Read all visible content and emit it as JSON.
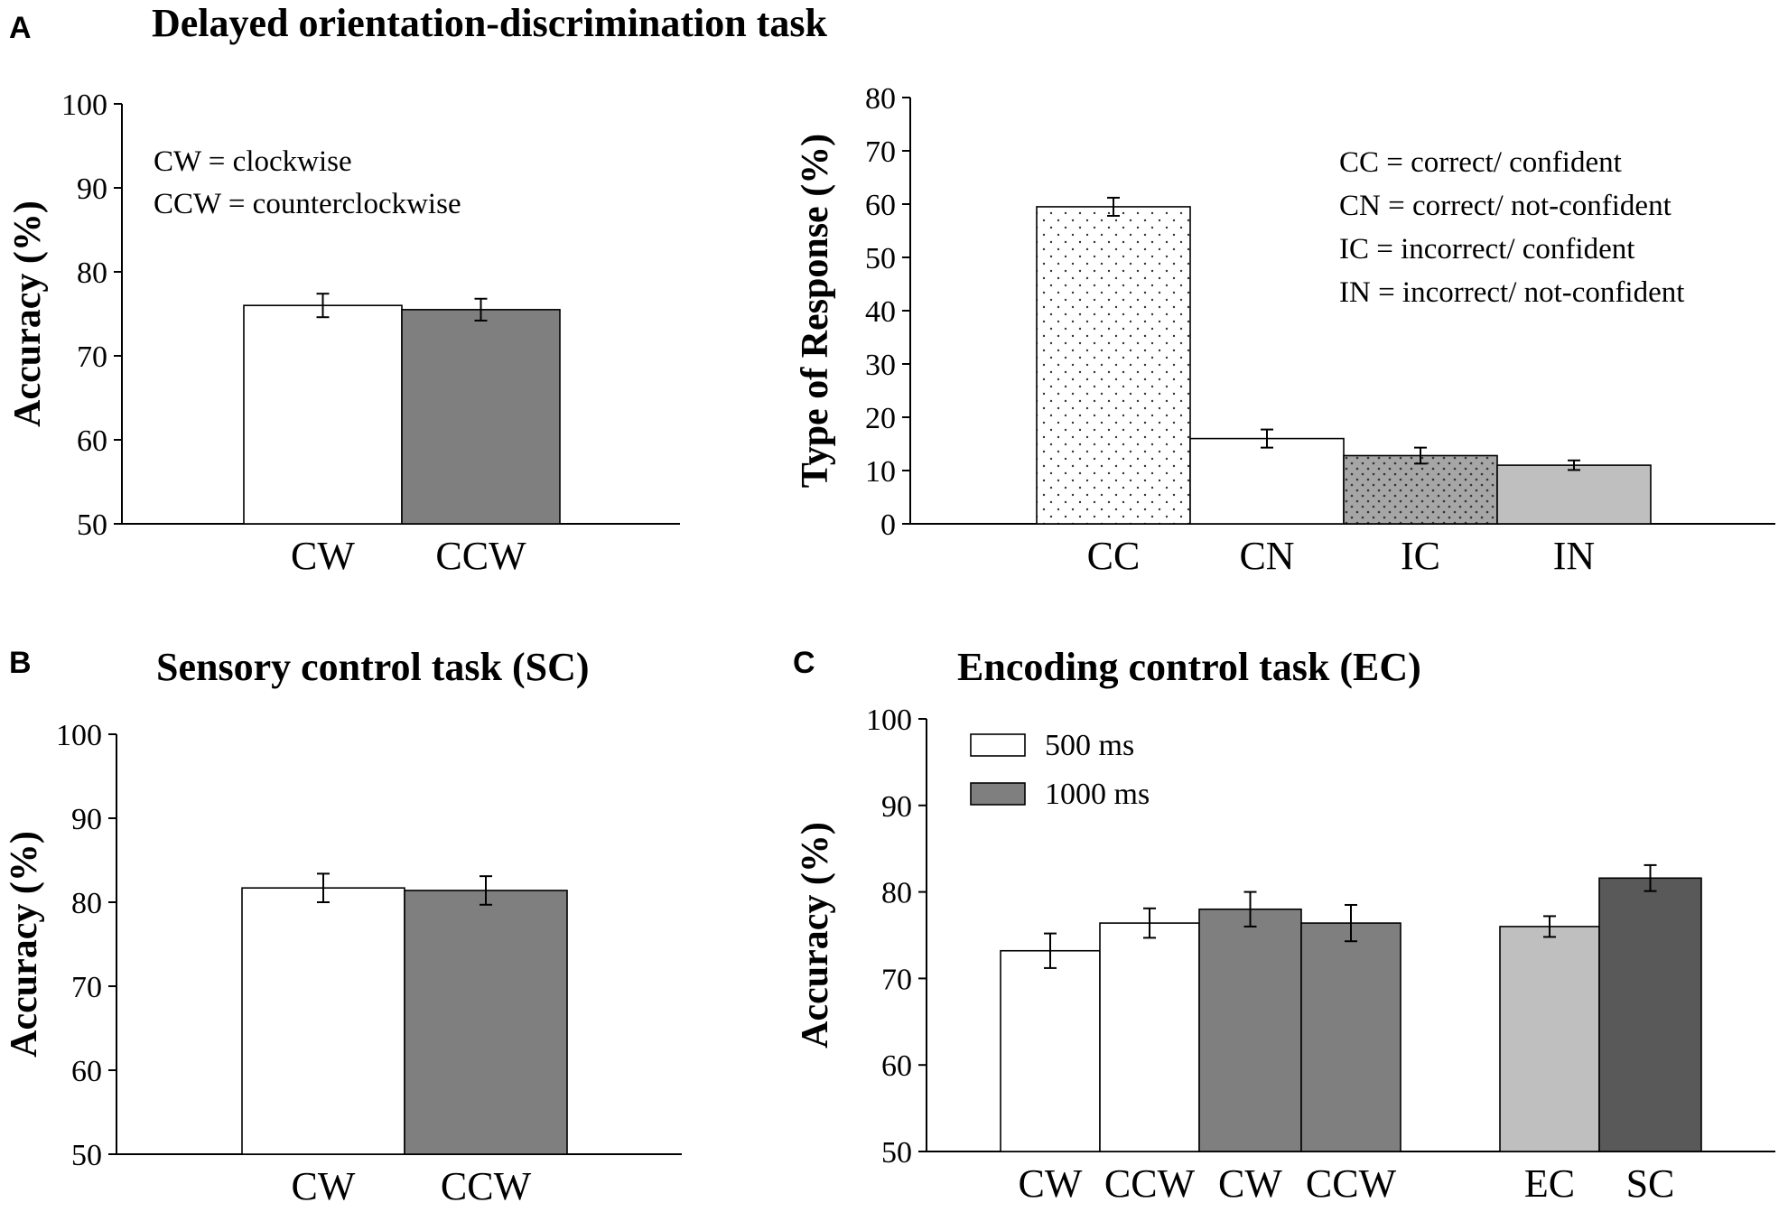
{
  "panels": {
    "A": {
      "letter": "A",
      "title": "Delayed orientation-discrimination task"
    },
    "B": {
      "letter": "B",
      "title": "Sensory control task (SC)"
    },
    "C": {
      "letter": "C",
      "title": "Encoding control task (EC)"
    }
  },
  "notes": {
    "a1": [
      "CW = clockwise",
      "CCW = counterclockwise"
    ],
    "a2": [
      "CC = correct/ confident",
      "CN = correct/ not-confident",
      "IC = incorrect/ confident",
      "IN = incorrect/ not-confident"
    ]
  },
  "colors": {
    "white": "#ffffff",
    "dark_gray": "#7f7f7f",
    "light_gray": "#bfbfbf",
    "darkest_gray": "#595959",
    "dot_gray": "#a6a6a6",
    "dots": "#333333"
  },
  "chart_data": [
    {
      "id": "a1",
      "type": "bar",
      "ylabel": "Accuracy (%)",
      "ylim": [
        50,
        100
      ],
      "yticks": [
        50,
        60,
        70,
        80,
        90,
        100
      ],
      "categories": [
        "CW",
        "CCW"
      ],
      "values": [
        76,
        75.5
      ],
      "errors": [
        1.4,
        1.3
      ],
      "fills": [
        "white",
        "dark_gray"
      ]
    },
    {
      "id": "a2",
      "type": "bar",
      "ylabel": "Type of Response (%)",
      "ylim": [
        0,
        80
      ],
      "yticks": [
        0,
        10,
        20,
        30,
        40,
        50,
        60,
        70,
        80
      ],
      "categories": [
        "CC",
        "CN",
        "IC",
        "IN"
      ],
      "values": [
        59.5,
        16,
        12.8,
        11
      ],
      "errors": [
        1.7,
        1.7,
        1.5,
        0.9
      ],
      "fills": [
        "dots_white",
        "white",
        "dots_gray",
        "light_gray"
      ]
    },
    {
      "id": "b",
      "type": "bar",
      "ylabel": "Accuracy (%)",
      "ylim": [
        50,
        100
      ],
      "yticks": [
        50,
        60,
        70,
        80,
        90,
        100
      ],
      "categories": [
        "CW",
        "CCW"
      ],
      "values": [
        81.7,
        81.4
      ],
      "errors": [
        1.7,
        1.7
      ],
      "fills": [
        "white",
        "dark_gray"
      ]
    },
    {
      "id": "c",
      "type": "bar",
      "ylabel": "Accuracy (%)",
      "ylim": [
        50,
        100
      ],
      "yticks": [
        50,
        60,
        70,
        80,
        90,
        100
      ],
      "categories": [
        "CW",
        "CCW",
        "CW",
        "CCW",
        "EC",
        "SC"
      ],
      "values": [
        73.2,
        76.4,
        78,
        76.4,
        76,
        81.6
      ],
      "errors": [
        2,
        1.7,
        2,
        2.1,
        1.2,
        1.5
      ],
      "fills": [
        "white",
        "white",
        "dark_gray",
        "dark_gray",
        "light_gray",
        "darkest_gray"
      ],
      "legend": [
        {
          "label": "500 ms",
          "fill": "white"
        },
        {
          "label": "1000 ms",
          "fill": "dark_gray"
        }
      ]
    }
  ]
}
